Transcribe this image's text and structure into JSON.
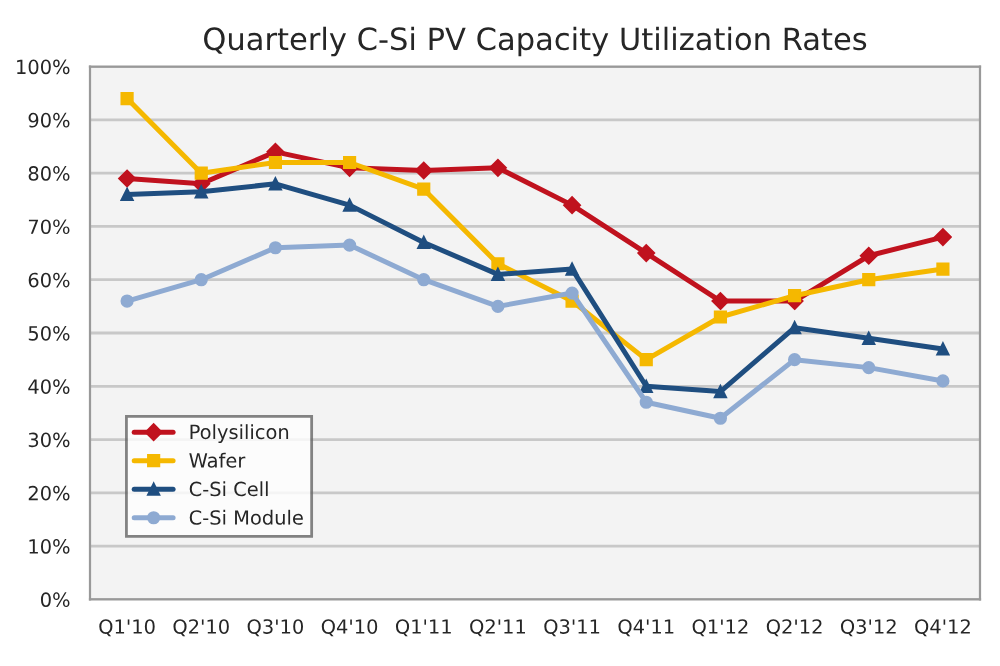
{
  "chart_data": {
    "type": "line",
    "title": "Quarterly C-Si PV Capacity Utilization Rates",
    "categories": [
      "Q1'10",
      "Q2'10",
      "Q3'10",
      "Q4'10",
      "Q1'11",
      "Q2'11",
      "Q3'11",
      "Q4'11",
      "Q1'12",
      "Q2'12",
      "Q3'12",
      "Q4'12"
    ],
    "series": [
      {
        "name": "Polysilicon",
        "color": "#c0121e",
        "marker": "diamond",
        "values": [
          79,
          78,
          84,
          81,
          80.5,
          81,
          74,
          65,
          56,
          56,
          64.5,
          68
        ]
      },
      {
        "name": "Wafer",
        "color": "#f5b800",
        "marker": "square",
        "values": [
          94,
          80,
          82,
          82,
          77,
          63,
          56,
          45,
          53,
          57,
          60,
          62
        ]
      },
      {
        "name": "C-Si Cell",
        "color": "#1f4e80",
        "marker": "triangle",
        "values": [
          76,
          76.5,
          78,
          74,
          67,
          61,
          62,
          40,
          39,
          51,
          49,
          47
        ]
      },
      {
        "name": "C-Si Module",
        "color": "#8eaad2",
        "marker": "circle",
        "values": [
          56,
          60,
          66,
          66.5,
          60,
          55,
          57.5,
          37,
          34,
          45,
          43.5,
          41
        ]
      }
    ],
    "ylim": [
      0,
      100
    ],
    "yticks": [
      {
        "value": 0,
        "label": "0%"
      },
      {
        "value": 10,
        "label": "10%"
      },
      {
        "value": 20,
        "label": "20%"
      },
      {
        "value": 30,
        "label": "30%"
      },
      {
        "value": 40,
        "label": "40%"
      },
      {
        "value": 50,
        "label": "50%"
      },
      {
        "value": 60,
        "label": "60%"
      },
      {
        "value": 70,
        "label": "70%"
      },
      {
        "value": 80,
        "label": "80%"
      },
      {
        "value": 90,
        "label": "90%"
      },
      {
        "value": 100,
        "label": "100%"
      }
    ],
    "grid": "y",
    "legend": "bottom left"
  }
}
